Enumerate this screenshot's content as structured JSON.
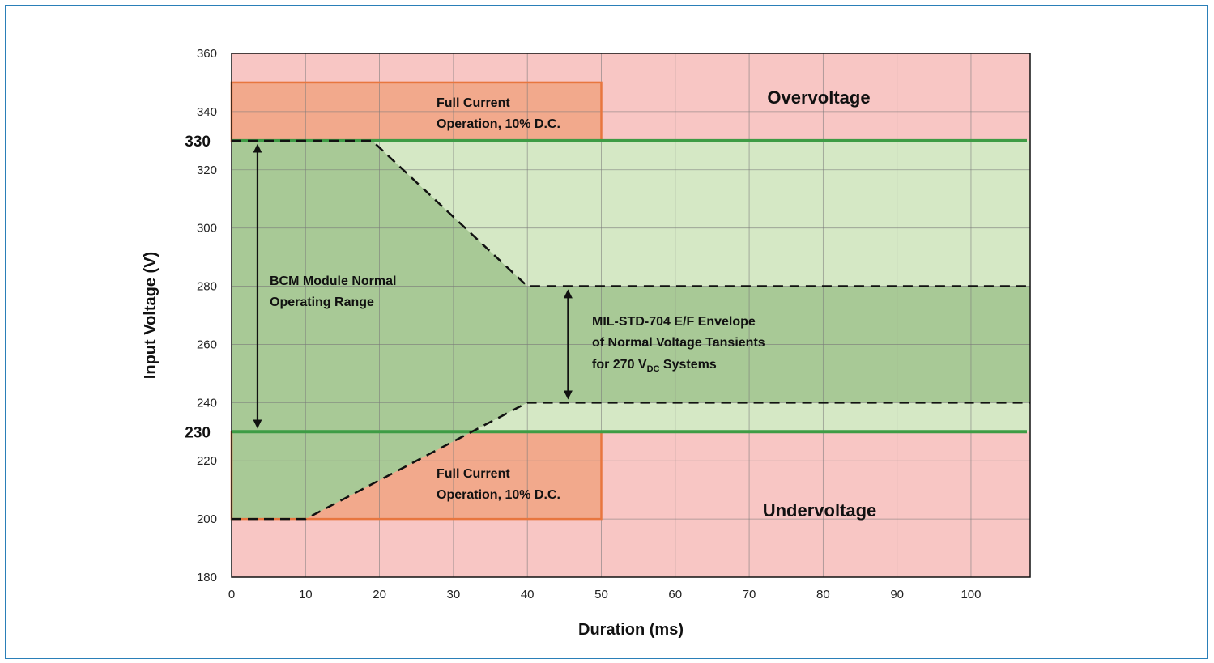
{
  "chart_data": {
    "type": "area",
    "xlabel": "Duration (ms)",
    "ylabel": "Input Voltage (V)",
    "xlim": [
      0,
      108
    ],
    "ylim": [
      180,
      360
    ],
    "x_ticks": [
      0,
      10,
      20,
      30,
      40,
      50,
      60,
      70,
      80,
      90,
      100
    ],
    "y_ticks": [
      180,
      200,
      220,
      240,
      260,
      280,
      300,
      320,
      340,
      360
    ],
    "y_ticks_emphasized": [
      230,
      330
    ],
    "grid": true,
    "regions": [
      {
        "name": "Overvoltage",
        "label": "Overvoltage",
        "y_range": [
          330,
          360
        ],
        "color": "#f8c6c4"
      },
      {
        "name": "Undervoltage",
        "label": "Undervoltage",
        "y_range": [
          180,
          230
        ],
        "color": "#f8c6c4"
      },
      {
        "name": "full-current-upper",
        "label_lines": [
          "Full Current",
          "Operation, 10% D.C."
        ],
        "x_range": [
          0,
          50
        ],
        "y_range": [
          330,
          350
        ],
        "color": "#f2a98c",
        "border": "#e8763f"
      },
      {
        "name": "full-current-lower",
        "label_lines": [
          "Full Current",
          "Operation, 10% D.C."
        ],
        "x_range": [
          0,
          50
        ],
        "y_range": [
          200,
          230
        ],
        "color": "#f2a98c",
        "border": "#e8763f"
      },
      {
        "name": "bcm-normal-range",
        "y_range": [
          230,
          330
        ],
        "color": "#d5e8c5"
      }
    ],
    "envelope": {
      "upper": {
        "x": [
          0,
          19,
          40,
          108
        ],
        "y": [
          330,
          330,
          280,
          280
        ]
      },
      "lower": {
        "x": [
          0,
          10,
          40,
          108
        ],
        "y": [
          200,
          200,
          240,
          240
        ]
      },
      "color": "#a8c996",
      "line_style": "dashed"
    },
    "limit_lines": [
      {
        "y": 330,
        "color": "#3e9c45"
      },
      {
        "y": 230,
        "color": "#3e9c45"
      }
    ],
    "annotations": [
      {
        "name": "bcm-label",
        "lines": [
          "BCM Module Normal",
          "Operating Range"
        ],
        "arrow": {
          "x": 3.5,
          "y_range": [
            230,
            330
          ]
        }
      },
      {
        "name": "mil-std-label",
        "lines": [
          "MIL-STD-704 E/F Envelope",
          "of Normal Voltage Tansients",
          "for 270 V"
        ],
        "subscript": "DC",
        "suffix": " Systems",
        "arrow": {
          "x": 45.5,
          "y_range": [
            240,
            280
          ]
        }
      }
    ]
  }
}
